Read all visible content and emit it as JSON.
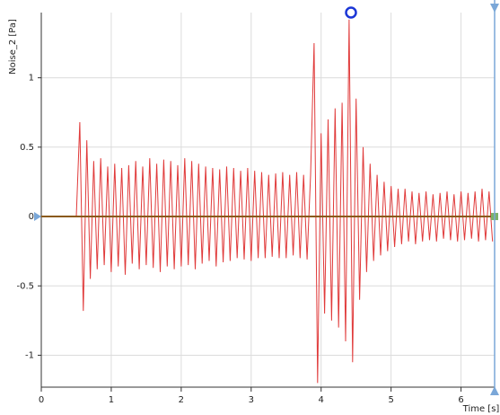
{
  "chart_data": {
    "type": "line",
    "y_label": "Noise_2 [Pa]",
    "x_label": "Time [s]",
    "x": [
      0,
      0.05,
      0.1,
      0.15,
      0.2,
      0.25,
      0.3,
      0.35,
      0.4,
      0.45,
      0.5,
      0.55,
      0.6,
      0.65,
      0.7,
      0.75,
      0.8,
      0.85,
      0.9,
      0.95,
      1,
      1.05,
      1.1,
      1.15,
      1.2,
      1.25,
      1.3,
      1.35,
      1.4,
      1.45,
      1.5,
      1.55,
      1.6,
      1.65,
      1.7,
      1.75,
      1.8,
      1.85,
      1.9,
      1.95,
      2,
      2.05,
      2.1,
      2.15,
      2.2,
      2.25,
      2.3,
      2.35,
      2.4,
      2.45,
      2.5,
      2.55,
      2.6,
      2.65,
      2.7,
      2.75,
      2.8,
      2.85,
      2.9,
      2.95,
      3,
      3.05,
      3.1,
      3.15,
      3.2,
      3.25,
      3.3,
      3.35,
      3.4,
      3.45,
      3.5,
      3.55,
      3.6,
      3.65,
      3.7,
      3.75,
      3.8,
      3.85,
      3.9,
      3.95,
      4,
      4.05,
      4.1,
      4.15,
      4.2,
      4.25,
      4.3,
      4.35,
      4.4,
      4.45,
      4.5,
      4.55,
      4.6,
      4.65,
      4.7,
      4.75,
      4.8,
      4.85,
      4.9,
      4.95,
      5,
      5.05,
      5.1,
      5.15,
      5.2,
      5.25,
      5.3,
      5.35,
      5.4,
      5.45,
      5.5,
      5.55,
      5.6,
      5.65,
      5.7,
      5.75,
      5.8,
      5.85,
      5.9,
      5.95,
      6,
      6.05,
      6.1,
      6.15,
      6.2,
      6.25,
      6.3,
      6.35,
      6.4,
      6.45
    ],
    "series": [
      {
        "color": "#e03a3a",
        "values": [
          0,
          0,
          0,
          0,
          0,
          0,
          0,
          0,
          0,
          0,
          0,
          0.68,
          -0.68,
          0.55,
          -0.45,
          0.4,
          -0.38,
          0.42,
          -0.35,
          0.36,
          -0.4,
          0.38,
          -0.36,
          0.35,
          -0.42,
          0.37,
          -0.34,
          0.4,
          -0.38,
          0.36,
          -0.35,
          0.42,
          -0.37,
          0.38,
          -0.4,
          0.41,
          -0.36,
          0.4,
          -0.38,
          0.37,
          -0.36,
          0.42,
          -0.35,
          0.4,
          -0.38,
          0.38,
          -0.34,
          0.36,
          -0.32,
          0.35,
          -0.36,
          0.34,
          -0.33,
          0.36,
          -0.32,
          0.35,
          -0.3,
          0.33,
          -0.31,
          0.35,
          -0.32,
          0.33,
          -0.3,
          0.32,
          -0.3,
          0.3,
          -0.29,
          0.31,
          -0.3,
          0.32,
          -0.3,
          0.3,
          -0.28,
          0.32,
          -0.3,
          0.3,
          -0.31,
          0.3,
          1.25,
          -1.2,
          0.6,
          -0.7,
          0.7,
          -0.75,
          0.78,
          -0.8,
          0.82,
          -0.9,
          1.42,
          -1.05,
          0.85,
          -0.6,
          0.5,
          -0.4,
          0.38,
          -0.32,
          0.3,
          -0.28,
          0.25,
          -0.25,
          0.22,
          -0.22,
          0.2,
          -0.2,
          0.2,
          -0.18,
          0.18,
          -0.2,
          0.17,
          -0.18,
          0.18,
          -0.17,
          0.16,
          -0.18,
          0.17,
          -0.16,
          0.18,
          -0.17,
          0.16,
          -0.18,
          0.18,
          -0.17,
          0.17,
          -0.16,
          0.18,
          -0.18,
          0.2,
          -0.17,
          0.18,
          -0.18
        ]
      }
    ],
    "xlim": [
      0,
      6.48
    ],
    "ylim": [
      -1.23,
      1.47
    ],
    "xticks": [
      0,
      1,
      2,
      3,
      4,
      5,
      6
    ],
    "yticks": [
      -1,
      -0.5,
      0,
      0.5,
      1
    ],
    "grid": true
  }
}
